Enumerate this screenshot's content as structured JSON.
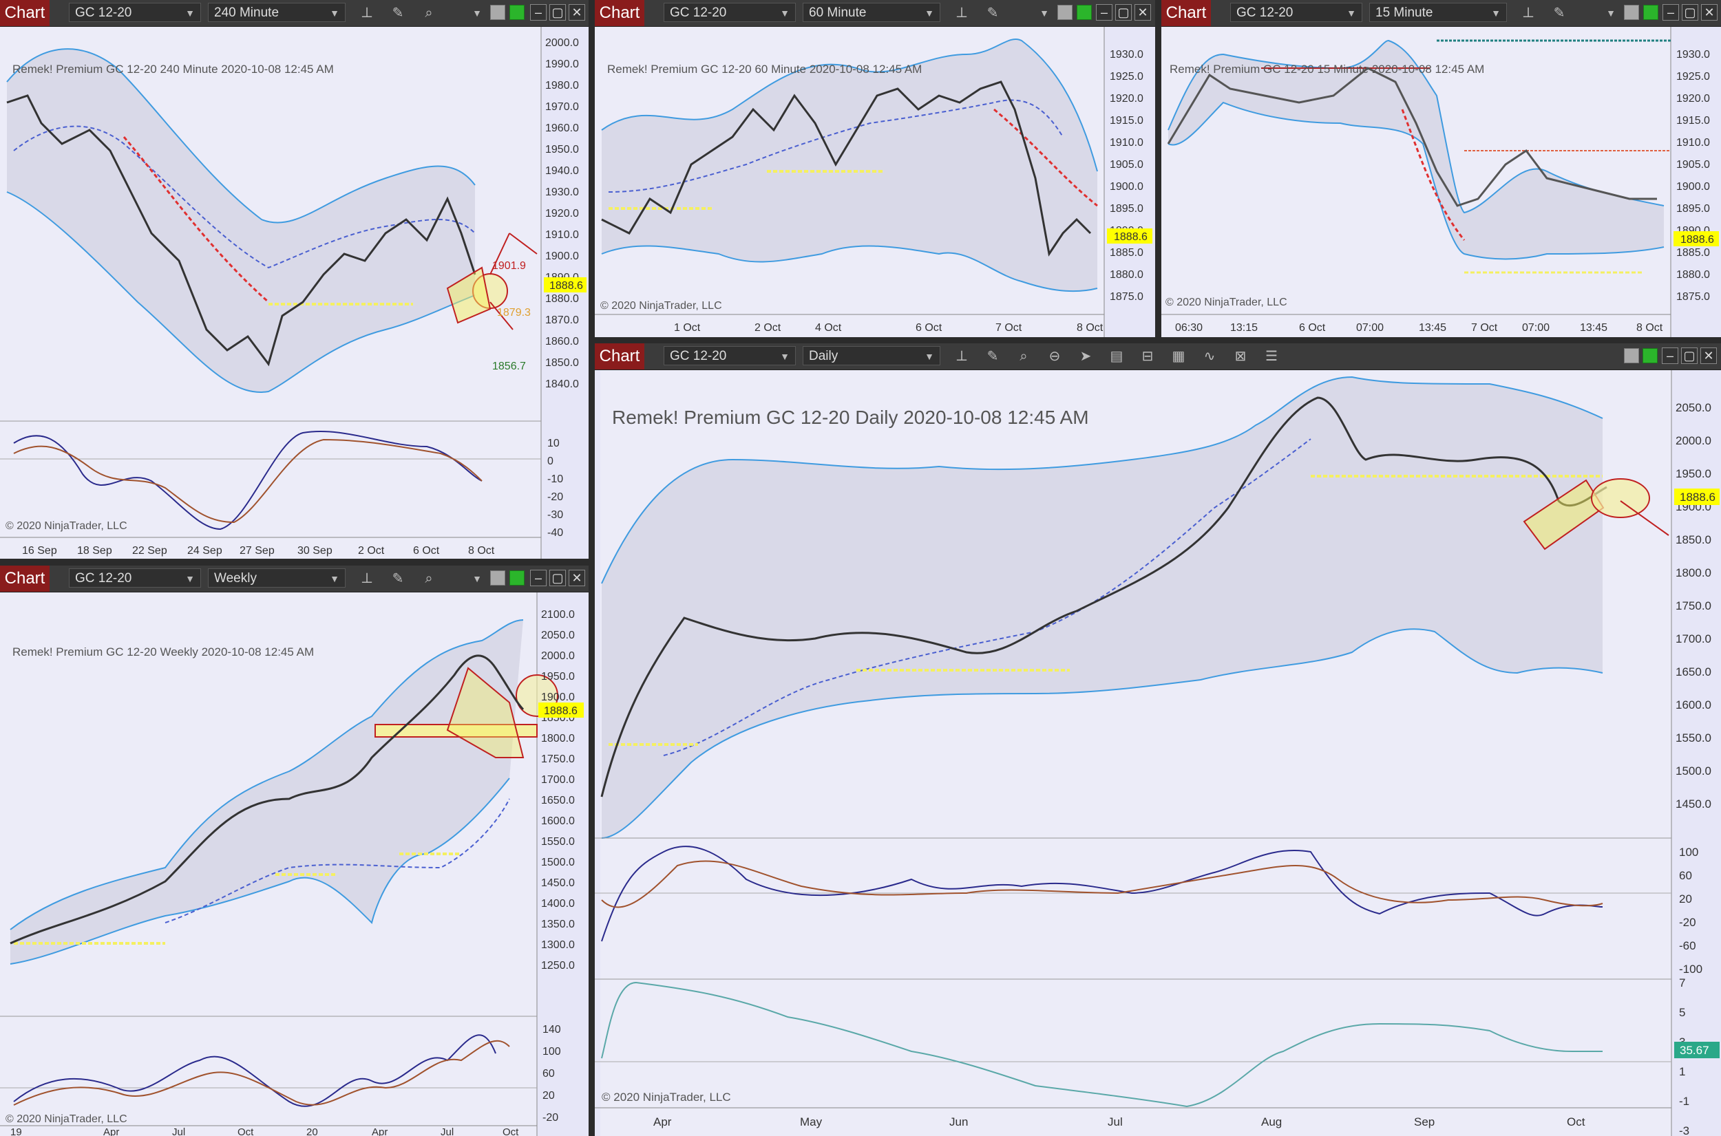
{
  "windows": [
    {
      "id": "w240",
      "tab": "Chart",
      "instrument": "GC 12-20",
      "interval": "240 Minute",
      "panel_title": "Remek!  Premium  GC 12-20  240 Minute  2020-10-08 12:45 AM",
      "copyright": "© 2020 NinjaTrader, LLC",
      "price_ticks": [
        "2000.0",
        "1990.0",
        "1980.0",
        "1970.0",
        "1960.0",
        "1950.0",
        "1940.0",
        "1930.0",
        "1920.0",
        "1910.0",
        "1900.0",
        "1890.0",
        "1880.0",
        "1870.0",
        "1860.0",
        "1850.0",
        "1840.0"
      ],
      "osc_ticks": [
        "10",
        "0",
        "-10",
        "-20",
        "-30",
        "-40"
      ],
      "time_ticks": [
        "16 Sep",
        "18 Sep",
        "22 Sep",
        "24 Sep",
        "27 Sep",
        "30 Sep",
        "2 Oct",
        "6 Oct",
        "8 Oct"
      ],
      "last_price": "1888.6",
      "annotations": [
        "1901.9",
        "1879.3",
        "1856.7"
      ]
    },
    {
      "id": "w60",
      "tab": "Chart",
      "instrument": "GC 12-20",
      "interval": "60 Minute",
      "panel_title": "Remek!  Premium  GC 12-20  60 Minute  2020-10-08 12:45 AM",
      "copyright": "© 2020 NinjaTrader, LLC",
      "price_ticks": [
        "1930.0",
        "1925.0",
        "1920.0",
        "1915.0",
        "1910.0",
        "1905.0",
        "1900.0",
        "1895.0",
        "1890.0",
        "1885.0",
        "1880.0",
        "1875.0"
      ],
      "time_ticks": [
        "1 Oct",
        "2 Oct",
        "4 Oct",
        "6 Oct",
        "7 Oct",
        "8 Oct"
      ],
      "last_price": "1888.6"
    },
    {
      "id": "w15",
      "tab": "Chart",
      "instrument": "GC 12-20",
      "interval": "15 Minute",
      "panel_title": "Remek!  Premium  GC 12-20  15 Minute  2020-10-08 12:45 AM",
      "copyright": "© 2020 NinjaTrader, LLC",
      "price_ticks": [
        "1930.0",
        "1925.0",
        "1920.0",
        "1915.0",
        "1910.0",
        "1905.0",
        "1900.0",
        "1895.0",
        "1890.0",
        "1885.0",
        "1880.0",
        "1875.0"
      ],
      "time_ticks": [
        "06:30",
        "13:15",
        "6 Oct",
        "07:00",
        "13:45",
        "7 Oct",
        "07:00",
        "13:45",
        "8 Oct"
      ],
      "last_price": "1888.6"
    },
    {
      "id": "wweekly",
      "tab": "Chart",
      "instrument": "GC 12-20",
      "interval": "Weekly",
      "panel_title": "Remek!  Premium  GC 12-20  Weekly  2020-10-08 12:45 AM",
      "copyright": "© 2020 NinjaTrader, LLC",
      "price_ticks": [
        "2100.0",
        "2050.0",
        "2000.0",
        "1950.0",
        "1900.0",
        "1850.0",
        "1800.0",
        "1750.0",
        "1700.0",
        "1650.0",
        "1600.0",
        "1550.0",
        "1500.0",
        "1450.0",
        "1400.0",
        "1350.0",
        "1300.0",
        "1250.0"
      ],
      "osc_ticks": [
        "140",
        "100",
        "60",
        "20",
        "-20"
      ],
      "time_ticks": [
        "19",
        "Apr",
        "Jul",
        "Oct",
        "20",
        "Apr",
        "Jul",
        "Oct"
      ],
      "last_price": "1888.6"
    },
    {
      "id": "wdaily",
      "tab": "Chart",
      "instrument": "GC 12-20",
      "interval": "Daily",
      "panel_title": "Remek!  Premium  GC 12-20  Daily  2020-10-08 12:45 AM",
      "copyright": "© 2020 NinjaTrader, LLC",
      "price_ticks": [
        "2050.0",
        "2000.0",
        "1950.0",
        "1900.0",
        "1850.0",
        "1800.0",
        "1750.0",
        "1700.0",
        "1650.0",
        "1600.0",
        "1550.0",
        "1500.0",
        "1450.0"
      ],
      "osc_ticks": [
        "100",
        "60",
        "20",
        "-20",
        "-60",
        "-100"
      ],
      "vol_ticks": [
        "7",
        "5",
        "3",
        "1",
        "-1",
        "-3"
      ],
      "time_ticks": [
        "Apr",
        "May",
        "Jun",
        "Jul",
        "Aug",
        "Sep",
        "Oct"
      ],
      "last_price": "1888.6",
      "osc2_value": "35.67"
    }
  ],
  "colors": {
    "chart_bg": "#e6e6f7",
    "band": "#3f9be0",
    "midline_dashed": "#4a5fd0",
    "red_dashed": "#e03030",
    "support": "#f5f060",
    "price_badge": "#ffff00",
    "osc_fast": "#2a2a8c",
    "osc_slow": "#a0522d",
    "tab_red": "#8a1c1c"
  },
  "icons": [
    "bars-icon",
    "pencil-icon",
    "zoom-icon",
    "chevron-down-icon",
    "gray-square-icon",
    "green-square-icon",
    "minimize-icon",
    "maximize-icon",
    "close-icon"
  ]
}
